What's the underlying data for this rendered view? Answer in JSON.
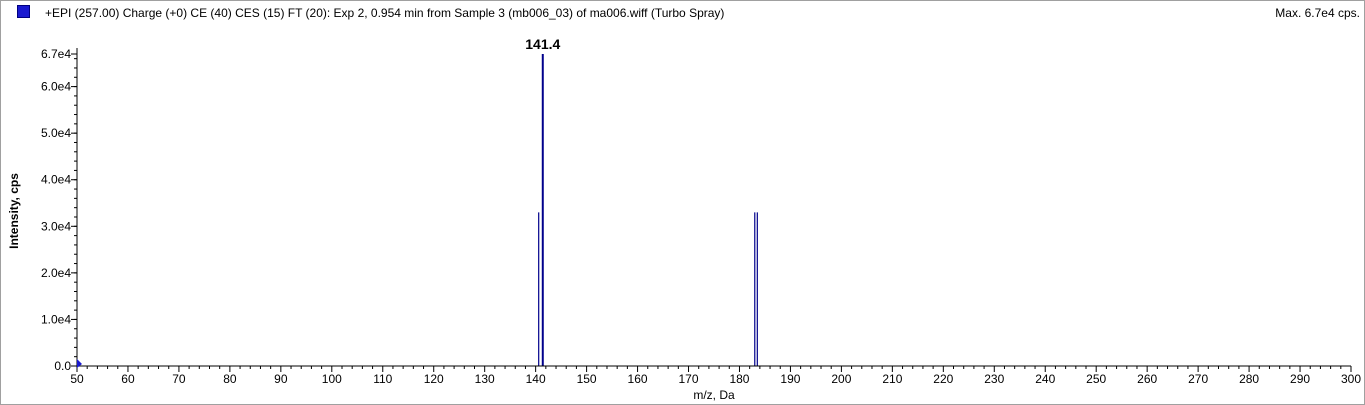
{
  "header": {
    "title": "+EPI (257.00) Charge (+0) CE (40) CES (15) FT (20): Exp 2, 0.954 min from Sample 3 (mb006_03) of ma006.wiff (Turbo Spray)",
    "max_label": "Max. 6.7e4 cps."
  },
  "colors": {
    "series": "#00008b",
    "swatch": "#1a1ad0"
  },
  "chart_data": {
    "type": "bar",
    "title": "+EPI (257.00) Charge (+0) CE (40) CES (15) FT (20): Exp 2, 0.954 min from Sample 3 (mb006_03) of ma006.wiff (Turbo Spray)",
    "xlabel": "m/z, Da",
    "ylabel": "Intensity, cps",
    "xlim": [
      50,
      300
    ],
    "ylim": [
      0,
      67000
    ],
    "x_ticks": [
      50,
      60,
      70,
      80,
      90,
      100,
      110,
      120,
      130,
      140,
      150,
      160,
      170,
      180,
      190,
      200,
      210,
      220,
      230,
      240,
      250,
      260,
      270,
      280,
      290,
      300
    ],
    "y_ticks": [
      0,
      10000,
      20000,
      30000,
      40000,
      50000,
      60000,
      67000
    ],
    "y_tick_labels": [
      "0.0",
      "1.0e4",
      "2.0e4",
      "3.0e4",
      "4.0e4",
      "5.0e4",
      "6.0e4",
      "6.7e4"
    ],
    "peaks": [
      {
        "mz": 140.6,
        "intensity": 33000
      },
      {
        "mz": 141.4,
        "intensity": 67000
      },
      {
        "mz": 183.0,
        "intensity": 33000
      },
      {
        "mz": 183.5,
        "intensity": 33000
      }
    ],
    "annotations": [
      {
        "mz": 141.4,
        "text": "141.4"
      }
    ],
    "grid": false,
    "legend": "top-left"
  }
}
